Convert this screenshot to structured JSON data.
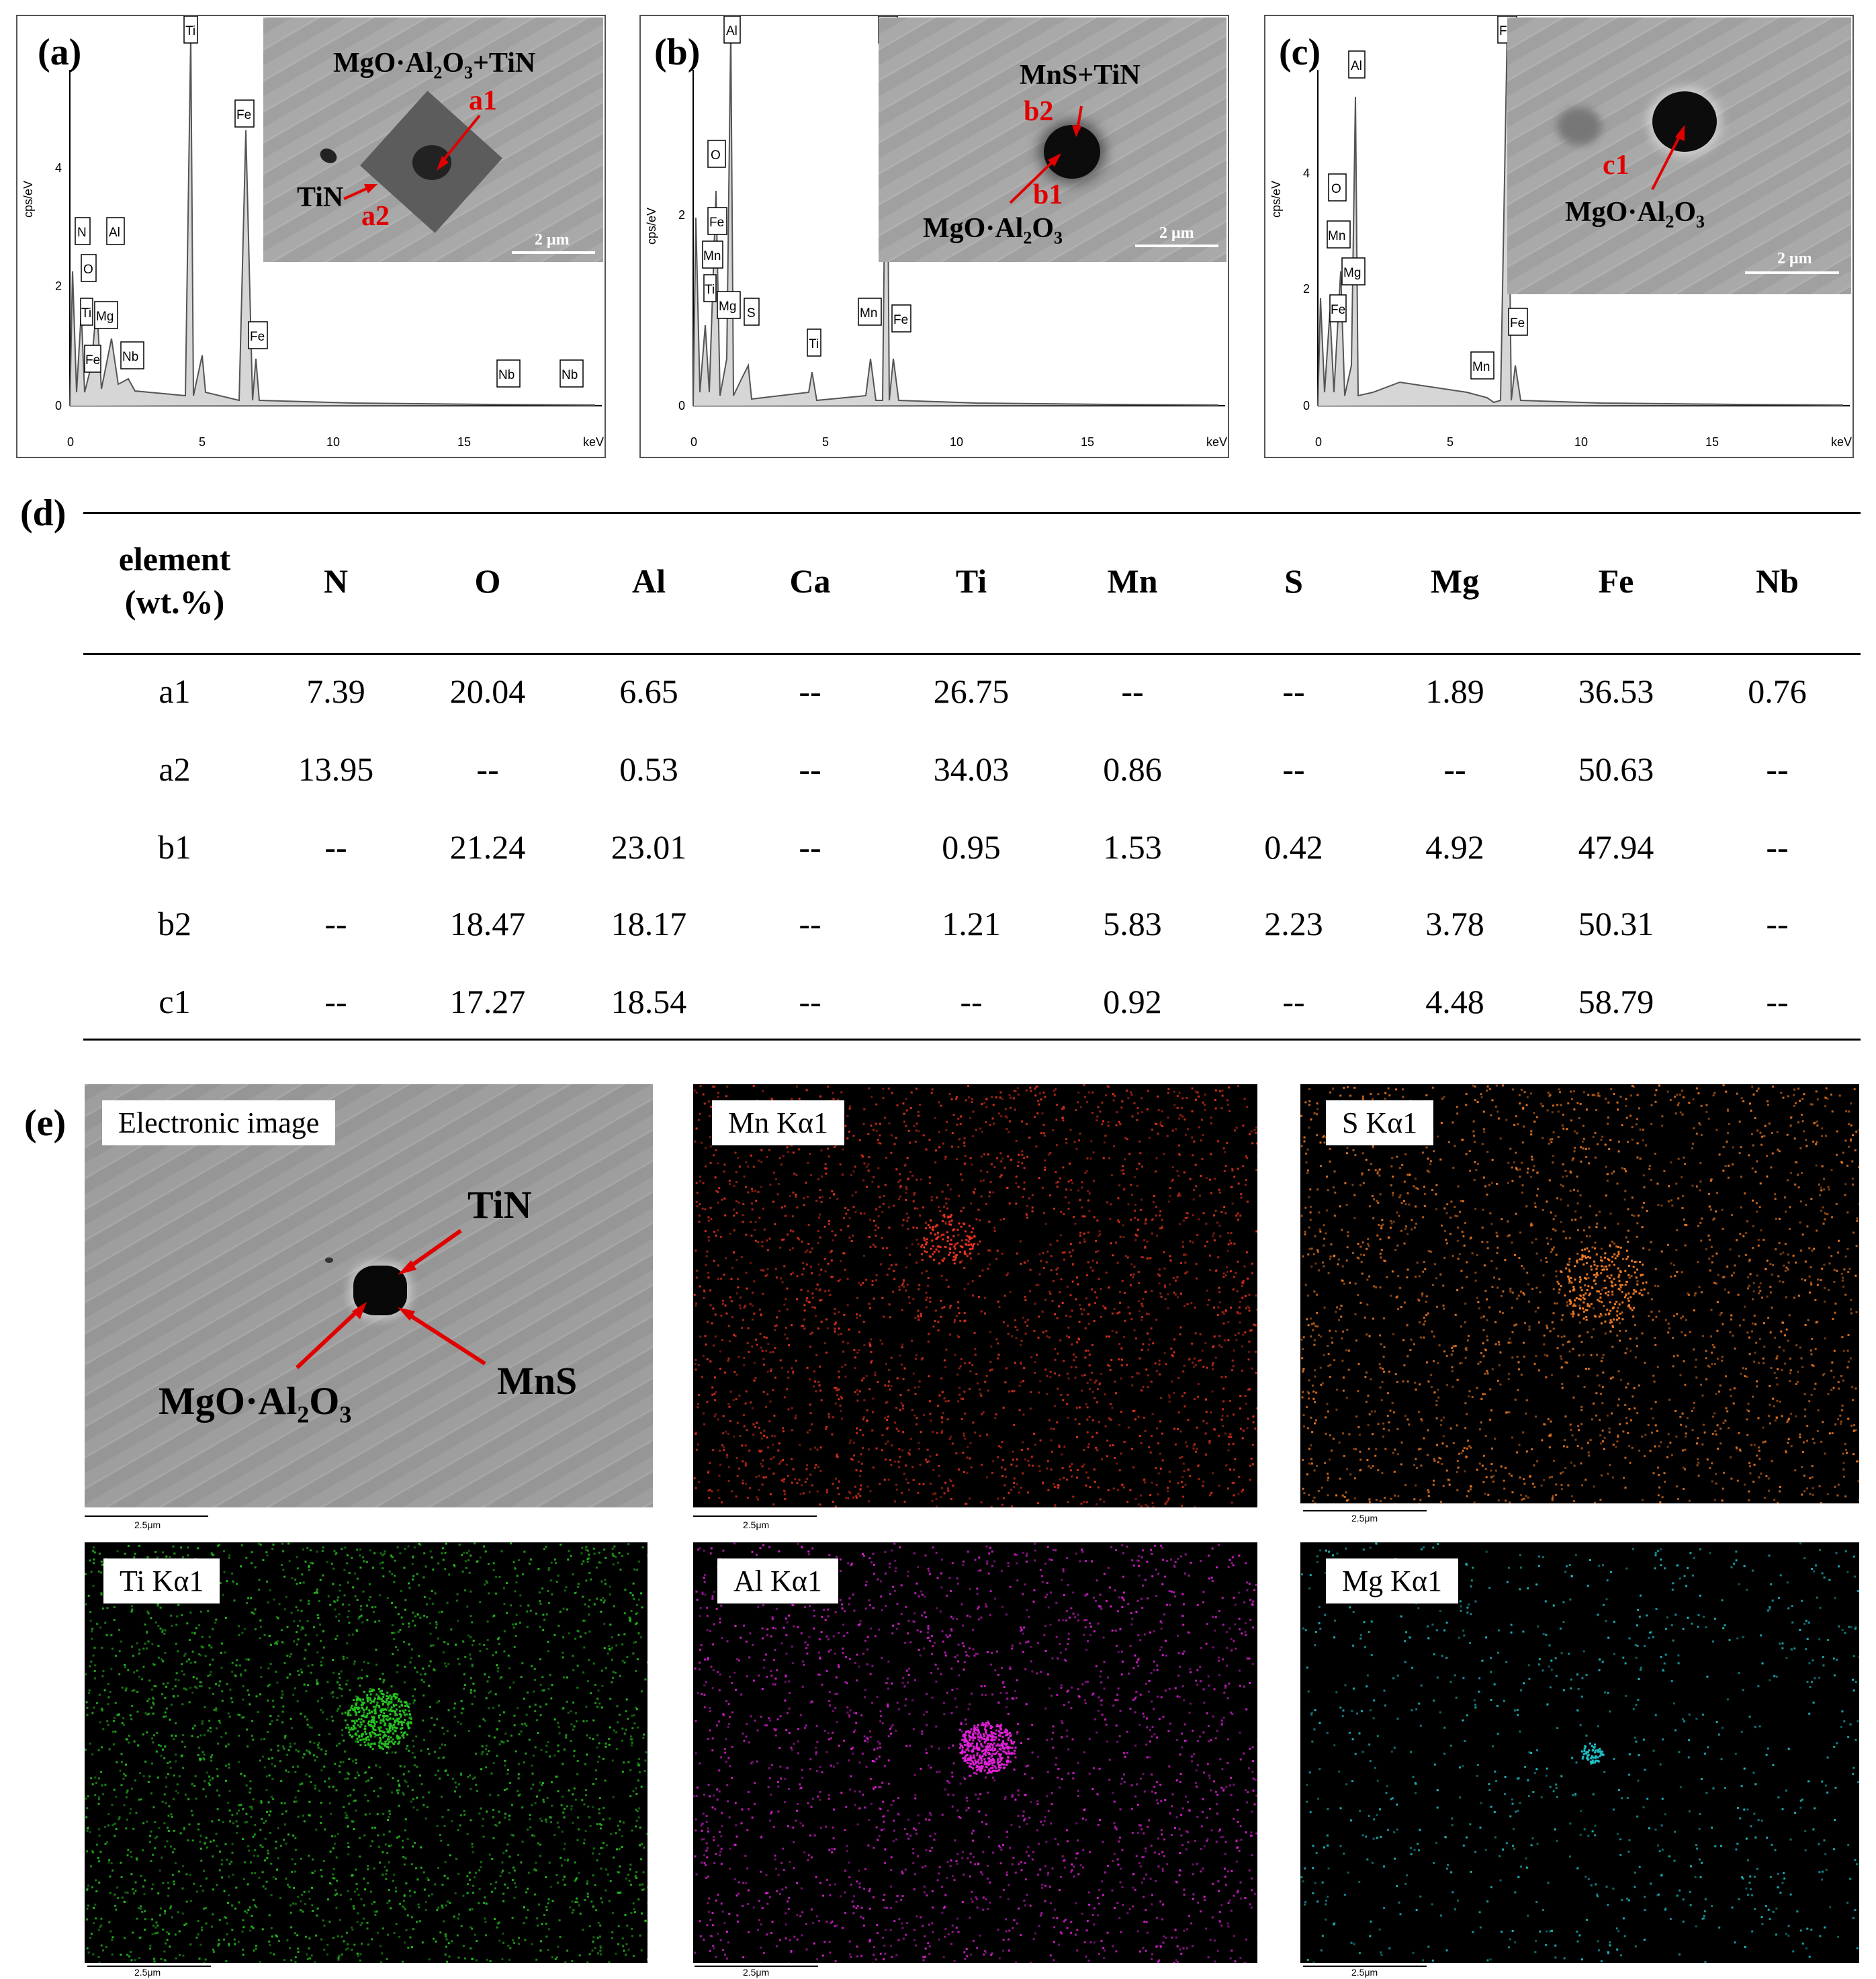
{
  "panels": {
    "a": {
      "label": "(a)",
      "yaxis": "cps/eV",
      "xunit": "keV",
      "yticks": [
        "0",
        "2",
        "4"
      ],
      "xticks": [
        "0",
        "5",
        "10",
        "15"
      ],
      "peaks": [
        "N",
        "O",
        "Ti",
        "Fe",
        "Al",
        "Mg",
        "Nb",
        "Ti",
        "Fe",
        "Fe",
        "Nb",
        "Nb"
      ],
      "inset_title": "MgO·Al2O3+TiN",
      "inset_labels": [
        "a1",
        "TiN",
        "a2"
      ],
      "scale": "2 μm"
    },
    "b": {
      "label": "(b)",
      "yaxis": "cps/eV",
      "xunit": "keV",
      "yticks": [
        "0",
        "2"
      ],
      "xticks": [
        "0",
        "5",
        "10",
        "15"
      ],
      "peaks": [
        "O",
        "Fe",
        "Mn",
        "Ti",
        "Mg",
        "S",
        "Ti",
        "Mn",
        "Fe",
        "Al",
        "Fe"
      ],
      "inset_title": "MnS+TiN",
      "inset_labels": [
        "b2",
        "b1",
        "MgO·Al2O3"
      ],
      "scale": "2 μm"
    },
    "c": {
      "label": "(c)",
      "yaxis": "cps/eV",
      "xunit": "keV",
      "yticks": [
        "0",
        "2",
        "4"
      ],
      "xticks": [
        "0",
        "5",
        "10",
        "15"
      ],
      "peaks": [
        "O",
        "Mn",
        "Fe",
        "Mg",
        "Al",
        "Mn",
        "Fe",
        "Fe"
      ],
      "inset_labels": [
        "c1",
        "MgO·Al2O3"
      ],
      "scale": "2 μm"
    }
  },
  "table": {
    "label": "(d)",
    "header_line1": "element",
    "header_line2": "(wt.%)",
    "columns": [
      "N",
      "O",
      "Al",
      "Ca",
      "Ti",
      "Mn",
      "S",
      "Mg",
      "Fe",
      "Nb"
    ],
    "rows": [
      {
        "name": "a1",
        "values": [
          "7.39",
          "20.04",
          "6.65",
          "--",
          "26.75",
          "--",
          "--",
          "1.89",
          "36.53",
          "0.76"
        ]
      },
      {
        "name": "a2",
        "values": [
          "13.95",
          "--",
          "0.53",
          "--",
          "34.03",
          "0.86",
          "--",
          "--",
          "50.63",
          "--"
        ]
      },
      {
        "name": "b1",
        "values": [
          "--",
          "21.24",
          "23.01",
          "--",
          "0.95",
          "1.53",
          "0.42",
          "4.92",
          "47.94",
          "--"
        ]
      },
      {
        "name": "b2",
        "values": [
          "--",
          "18.47",
          "18.17",
          "--",
          "1.21",
          "5.83",
          "2.23",
          "3.78",
          "50.31",
          "--"
        ]
      },
      {
        "name": "c1",
        "values": [
          "--",
          "17.27",
          "18.54",
          "--",
          "--",
          "0.92",
          "--",
          "4.48",
          "58.79",
          "--"
        ]
      }
    ]
  },
  "maps": {
    "label": "(e)",
    "electronic": {
      "title": "Electronic image",
      "labels": [
        "TiN",
        "MgO·Al2O3",
        "MnS"
      ],
      "scale": "2.5μm"
    },
    "mn": {
      "title": "Mn Kα1",
      "color": "#e8321e",
      "scale": "2.5μm"
    },
    "s": {
      "title": "S Kα1",
      "color": "#f07a22",
      "scale": "2.5μm"
    },
    "ti": {
      "title": "Ti Kα1",
      "color": "#25c21e",
      "scale": "2.5μm"
    },
    "al": {
      "title": "Al Kα1",
      "color": "#e020d8",
      "scale": "2.5μm"
    },
    "mg": {
      "title": "Mg Kα1",
      "color": "#1ec0c8",
      "scale": "2.5μm"
    }
  }
}
